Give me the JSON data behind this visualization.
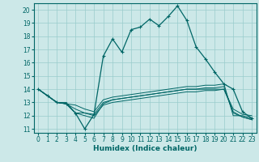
{
  "xlabel": "Humidex (Indice chaleur)",
  "bg_color": "#cce8e8",
  "grid_color": "#99cccc",
  "line_color": "#006666",
  "xlim": [
    -0.5,
    23.5
  ],
  "ylim": [
    10.7,
    20.5
  ],
  "yticks": [
    11,
    12,
    13,
    14,
    15,
    16,
    17,
    18,
    19,
    20
  ],
  "xticks": [
    0,
    1,
    2,
    3,
    4,
    5,
    6,
    7,
    8,
    9,
    10,
    11,
    12,
    13,
    14,
    15,
    16,
    17,
    18,
    19,
    20,
    21,
    22,
    23
  ],
  "series": [
    {
      "x": [
        0,
        1,
        2,
        3,
        4,
        5,
        6,
        7,
        8,
        9,
        10,
        11,
        12,
        13,
        14,
        15,
        16,
        17,
        18,
        19,
        20,
        21,
        22,
        23
      ],
      "y": [
        14.0,
        13.5,
        13.0,
        12.9,
        12.2,
        11.0,
        12.1,
        16.5,
        17.8,
        16.8,
        18.5,
        18.7,
        19.3,
        18.8,
        19.5,
        20.3,
        19.2,
        17.2,
        16.3,
        15.3,
        14.4,
        14.0,
        12.3,
        11.8
      ],
      "marker": "+"
    },
    {
      "x": [
        0,
        1,
        2,
        3,
        4,
        5,
        6,
        7,
        8,
        9,
        10,
        11,
        12,
        13,
        14,
        15,
        16,
        17,
        18,
        19,
        20,
        21,
        22,
        23
      ],
      "y": [
        14.0,
        13.5,
        13.0,
        12.9,
        12.2,
        12.2,
        12.1,
        13.0,
        13.2,
        13.3,
        13.4,
        13.5,
        13.6,
        13.7,
        13.8,
        13.9,
        14.0,
        14.0,
        14.0,
        14.0,
        14.0,
        12.5,
        12.1,
        12.0
      ],
      "marker": null
    },
    {
      "x": [
        0,
        1,
        2,
        3,
        4,
        5,
        6,
        7,
        8,
        9,
        10,
        11,
        12,
        13,
        14,
        15,
        16,
        17,
        18,
        19,
        20,
        21,
        22,
        23
      ],
      "y": [
        14.0,
        13.5,
        13.0,
        12.9,
        12.5,
        12.2,
        12.0,
        12.8,
        13.0,
        13.1,
        13.2,
        13.3,
        13.4,
        13.5,
        13.6,
        13.7,
        13.8,
        13.8,
        13.9,
        13.9,
        14.0,
        12.3,
        11.9,
        11.7
      ],
      "marker": null
    },
    {
      "x": [
        0,
        1,
        2,
        3,
        4,
        5,
        6,
        7,
        8,
        9,
        10,
        11,
        12,
        13,
        14,
        15,
        16,
        17,
        18,
        19,
        20,
        21,
        22,
        23
      ],
      "y": [
        14.0,
        13.5,
        13.0,
        12.9,
        12.8,
        12.5,
        12.3,
        13.2,
        13.4,
        13.5,
        13.6,
        13.7,
        13.8,
        13.9,
        14.0,
        14.1,
        14.2,
        14.2,
        14.3,
        14.3,
        14.4,
        12.0,
        12.0,
        11.8
      ],
      "marker": null
    },
    {
      "x": [
        0,
        1,
        2,
        3,
        4,
        5,
        6,
        7,
        8,
        9,
        10,
        11,
        12,
        13,
        14,
        15,
        16,
        17,
        18,
        19,
        20,
        21,
        22,
        23
      ],
      "y": [
        14.0,
        13.5,
        13.0,
        13.0,
        12.2,
        12.0,
        11.8,
        12.9,
        13.2,
        13.3,
        13.4,
        13.5,
        13.6,
        13.7,
        13.8,
        13.9,
        14.0,
        14.0,
        14.1,
        14.1,
        14.2,
        12.2,
        11.9,
        11.7
      ],
      "marker": null
    }
  ]
}
